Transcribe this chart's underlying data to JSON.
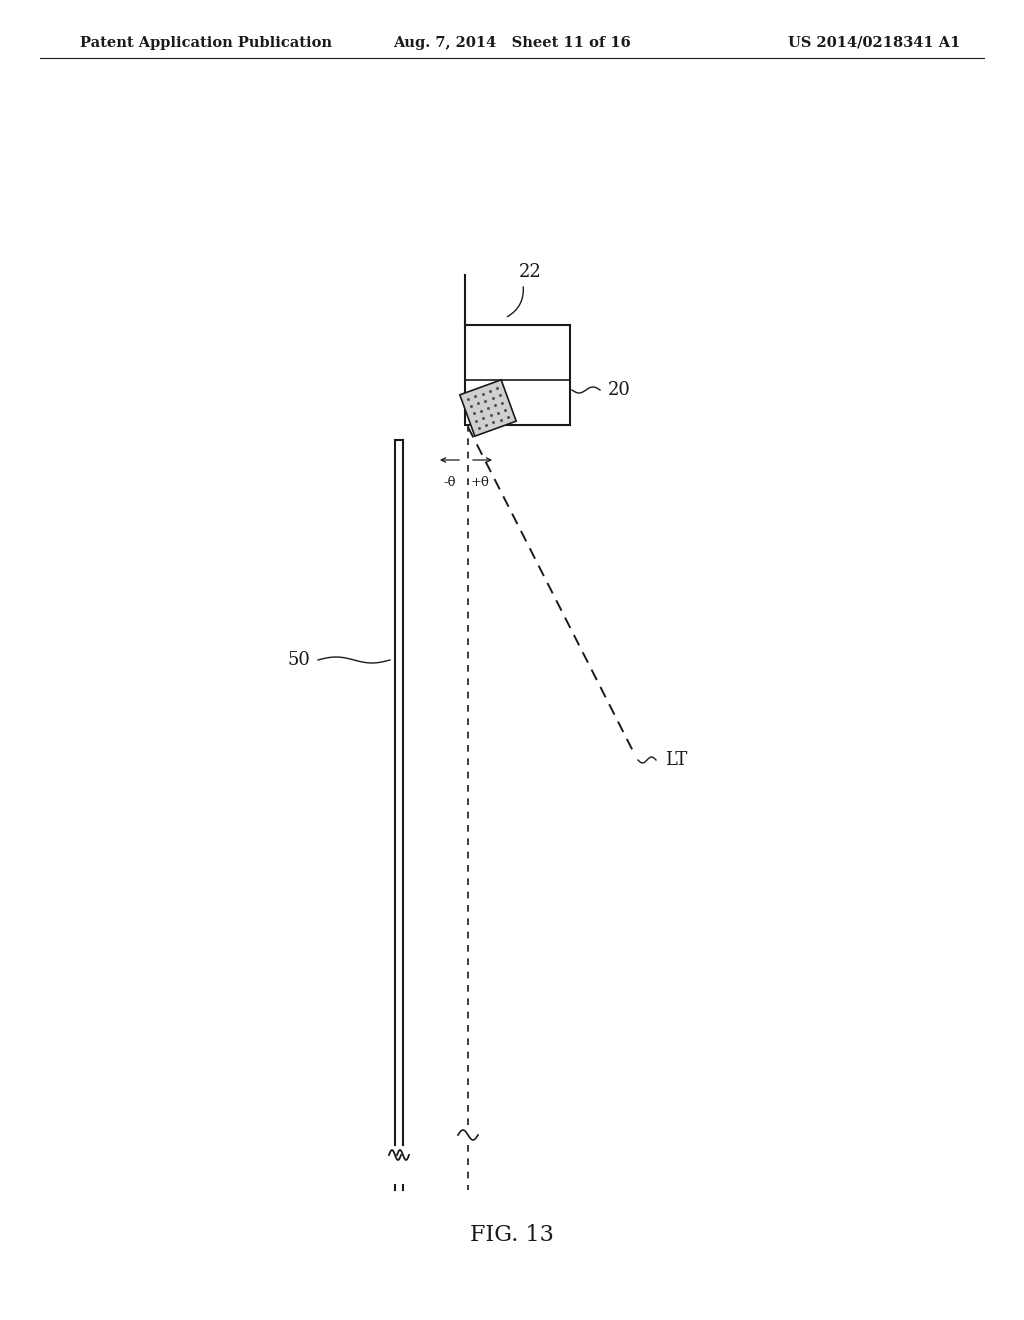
{
  "bg_color": "#ffffff",
  "line_color": "#1a1a1a",
  "header_left": "Patent Application Publication",
  "header_mid": "Aug. 7, 2014   Sheet 11 of 16",
  "header_right": "US 2014/0218341 A1",
  "fig_label": "FIG. 13",
  "label_22": "22",
  "label_20": "20",
  "label_50": "50",
  "label_LT": "LT",
  "label_neg_theta": "-θ",
  "label_pos_theta": "+θ"
}
